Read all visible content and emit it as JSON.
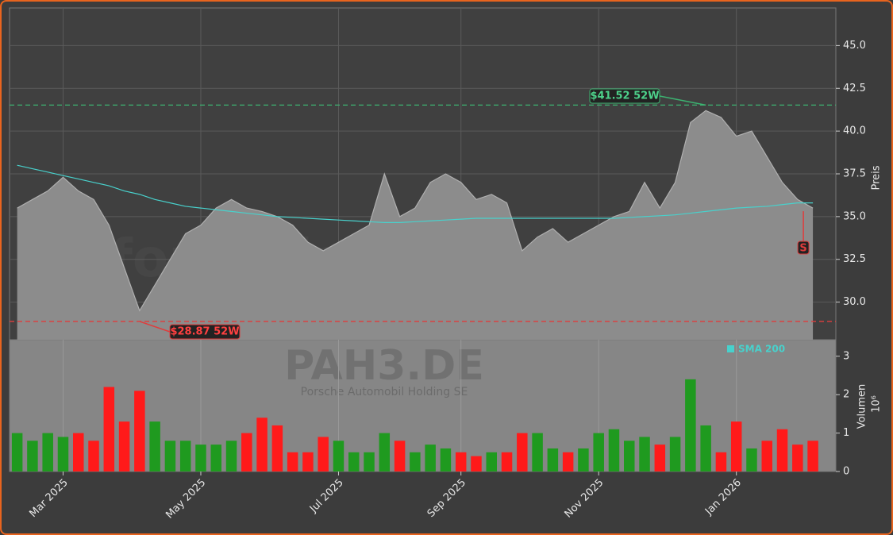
{
  "watermark": {
    "site": "forexsignale.trade",
    "symbol": "PAH3.DE",
    "company": "Porsche Automobil Holding SE"
  },
  "chart_data": [
    {
      "type": "area",
      "ylabel": "Preis",
      "ylim": [
        27.8,
        47.2
      ],
      "yticks": [
        {
          "value": 30,
          "label": "30.0"
        },
        32.5,
        {
          "value": 35,
          "label": "35.0"
        },
        37.5,
        {
          "value": 40,
          "label": "40.0"
        },
        42.5,
        {
          "value": 45,
          "label": "45.0"
        }
      ],
      "grid": true,
      "series": [
        {
          "name": null,
          "color": "#8c8c8c",
          "values": [
            35.5,
            36.0,
            36.5,
            37.3,
            36.5,
            36.0,
            34.5,
            32.0,
            29.5,
            31.0,
            32.5,
            34.0,
            34.5,
            35.5,
            36.0,
            35.5,
            35.3,
            35.0,
            34.5,
            33.5,
            33.0,
            33.5,
            34.0,
            34.5,
            37.5,
            35.0,
            35.5,
            37.0,
            37.5,
            37.0,
            36.0,
            36.3,
            35.8,
            33.0,
            33.8,
            34.3,
            33.5,
            34.0,
            34.5,
            35.0,
            35.3,
            37.0,
            35.5,
            37.0,
            40.5,
            41.2,
            40.8,
            39.7,
            40.0,
            38.5,
            37.0,
            36.0,
            35.5
          ]
        },
        {
          "name": "SMA 200",
          "color": "#48d1cc",
          "values": [
            38.0,
            37.8,
            37.6,
            37.4,
            37.2,
            37.0,
            36.8,
            36.5,
            36.3,
            36.0,
            35.8,
            35.6,
            35.5,
            35.4,
            35.3,
            35.2,
            35.1,
            35.0,
            34.95,
            34.9,
            34.85,
            34.8,
            34.75,
            34.7,
            34.65,
            34.65,
            34.7,
            34.75,
            34.8,
            34.85,
            34.9,
            34.9,
            34.9,
            34.9,
            34.9,
            34.9,
            34.9,
            34.9,
            34.9,
            34.9,
            34.95,
            35.0,
            35.05,
            35.1,
            35.2,
            35.3,
            35.4,
            35.5,
            35.55,
            35.6,
            35.7,
            35.8,
            35.8
          ]
        }
      ],
      "high_line": {
        "value": 41.52,
        "label": "$41.52 52W",
        "color": "#3cb371"
      },
      "low_line": {
        "value": 28.87,
        "label": "$28.87 52W",
        "color": "#e03c3c"
      },
      "signal": {
        "label": "S",
        "color": "#e03c3c"
      }
    },
    {
      "type": "bar",
      "ylabel": "Volumen",
      "offset_label": "10⁶",
      "ylim": [
        0,
        3.43
      ],
      "yticks": [
        0,
        1,
        2,
        3
      ],
      "categories": [
        null,
        null,
        null,
        "Mar 2025",
        null,
        null,
        null,
        null,
        null,
        null,
        null,
        null,
        "May 2025",
        null,
        null,
        null,
        null,
        null,
        null,
        null,
        null,
        "Jul 2025",
        null,
        null,
        null,
        null,
        null,
        null,
        null,
        "Sep 2025",
        null,
        null,
        null,
        null,
        null,
        null,
        null,
        null,
        "Nov 2025",
        null,
        null,
        null,
        null,
        null,
        null,
        null,
        null,
        "Jan 2026",
        null,
        null,
        null,
        null,
        null
      ],
      "values": [
        1.0,
        0.8,
        1.0,
        0.9,
        1.0,
        0.8,
        2.2,
        1.3,
        2.1,
        1.3,
        0.8,
        0.8,
        0.7,
        0.7,
        0.8,
        1.0,
        1.4,
        1.2,
        0.5,
        0.5,
        0.9,
        0.8,
        0.5,
        0.5,
        1.0,
        0.8,
        0.5,
        0.7,
        0.6,
        0.5,
        0.4,
        0.5,
        0.5,
        1.0,
        1.0,
        0.6,
        0.5,
        0.6,
        1.0,
        1.1,
        0.8,
        0.9,
        0.7,
        0.9,
        2.4,
        1.2,
        0.5,
        1.3,
        0.6,
        0.8,
        1.1,
        0.7,
        0.8
      ],
      "colors": [
        "#1f9a1f",
        "#1f9a1f",
        "#1f9a1f",
        "#1f9a1f",
        "#ff1a1a",
        "#ff1a1a",
        "#ff1a1a",
        "#ff1a1a",
        "#ff1a1a",
        "#1f9a1f",
        "#1f9a1f",
        "#1f9a1f",
        "#1f9a1f",
        "#1f9a1f",
        "#1f9a1f",
        "#ff1a1a",
        "#ff1a1a",
        "#ff1a1a",
        "#ff1a1a",
        "#ff1a1a",
        "#ff1a1a",
        "#1f9a1f",
        "#1f9a1f",
        "#1f9a1f",
        "#1f9a1f",
        "#ff1a1a",
        "#1f9a1f",
        "#1f9a1f",
        "#1f9a1f",
        "#ff1a1a",
        "#ff1a1a",
        "#1f9a1f",
        "#ff1a1a",
        "#ff1a1a",
        "#1f9a1f",
        "#1f9a1f",
        "#ff1a1a",
        "#1f9a1f",
        "#1f9a1f",
        "#1f9a1f",
        "#1f9a1f",
        "#1f9a1f",
        "#ff1a1a",
        "#1f9a1f",
        "#1f9a1f",
        "#1f9a1f",
        "#ff1a1a",
        "#ff1a1a",
        "#1f9a1f",
        "#ff1a1a",
        "#ff1a1a",
        "#ff1a1a",
        "#ff1a1a"
      ]
    }
  ]
}
